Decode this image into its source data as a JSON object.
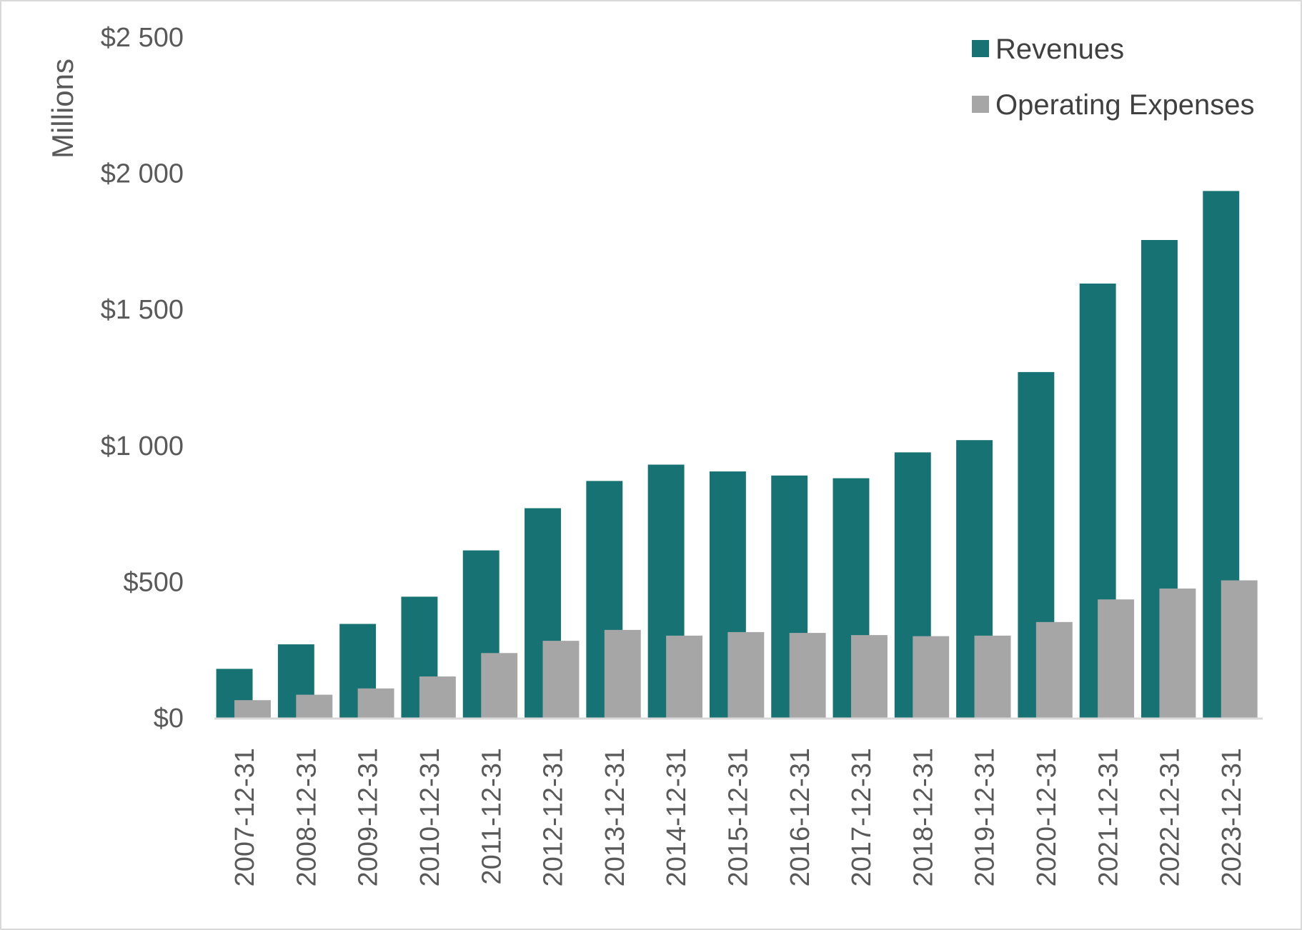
{
  "chart_data": {
    "type": "bar",
    "title": "",
    "xlabel": "",
    "ylabel": "Millions",
    "ylim": [
      0,
      2500
    ],
    "y_ticks": [
      {
        "value": 0,
        "label": "$0"
      },
      {
        "value": 500,
        "label": "$500"
      },
      {
        "value": 1000,
        "label": "$1 000"
      },
      {
        "value": 1500,
        "label": "$1 500"
      },
      {
        "value": 2000,
        "label": "$2 000"
      },
      {
        "value": 2500,
        "label": "$2 500"
      }
    ],
    "grid": false,
    "legend_position": "top-right",
    "categories": [
      "2007-12-31",
      "2008-12-31",
      "2009-12-31",
      "2010-12-31",
      "2011-12-31",
      "2012-12-31",
      "2013-12-31",
      "2014-12-31",
      "2015-12-31",
      "2016-12-31",
      "2017-12-31",
      "2018-12-31",
      "2019-12-31",
      "2020-12-31",
      "2021-12-31",
      "2022-12-31",
      "2023-12-31"
    ],
    "series": [
      {
        "name": "Revenues",
        "color": "#177373",
        "values": [
          180,
          270,
          345,
          445,
          615,
          770,
          870,
          930,
          905,
          890,
          880,
          975,
          1020,
          1270,
          1595,
          1755,
          1935
        ]
      },
      {
        "name": "Operating Expenses",
        "color": "#a6a6a6",
        "values": [
          65,
          85,
          108,
          152,
          238,
          283,
          323,
          302,
          315,
          312,
          304,
          300,
          302,
          352,
          435,
          475,
          505
        ]
      }
    ]
  }
}
